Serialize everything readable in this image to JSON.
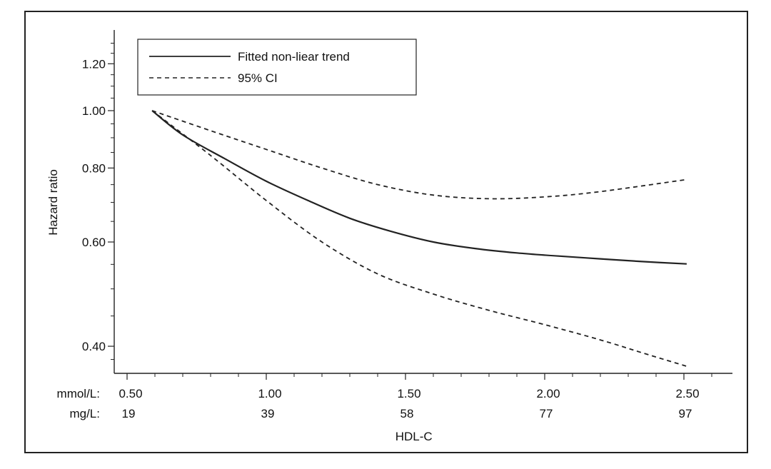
{
  "chart_data": {
    "type": "line",
    "xlabel": "HDL-C",
    "ylabel": "Hazard ratio",
    "y_scale": "log",
    "ylim": [
      0.37,
      1.35
    ],
    "xlim": [
      0.45,
      2.7
    ],
    "y_ticks": [
      {
        "value": 1.2,
        "label": "1.20"
      },
      {
        "value": 1.0,
        "label": "1.00"
      },
      {
        "value": 0.8,
        "label": "0.80"
      },
      {
        "value": 0.6,
        "label": "0.60"
      },
      {
        "value": 0.4,
        "label": "0.40"
      }
    ],
    "y_minor_ticks": [
      1.3,
      1.25,
      1.15,
      1.1,
      1.05,
      0.95,
      0.9,
      0.85,
      0.75,
      0.7,
      0.65,
      0.55,
      0.5,
      0.45,
      0.38
    ],
    "x_ticks": [
      {
        "value": 0.5,
        "mmol": "0.50",
        "mg": "19"
      },
      {
        "value": 1.0,
        "mmol": "1.00",
        "mg": "39"
      },
      {
        "value": 1.5,
        "mmol": "1.50",
        "mg": "58"
      },
      {
        "value": 2.0,
        "mmol": "2.00",
        "mg": "77"
      },
      {
        "value": 2.5,
        "mmol": "2.50",
        "mg": "97"
      }
    ],
    "x_minor_ticks": [
      0.6,
      0.7,
      0.8,
      0.9,
      1.1,
      1.2,
      1.3,
      1.4,
      1.6,
      1.7,
      1.8,
      1.9,
      2.1,
      2.2,
      2.3,
      2.4,
      2.6
    ],
    "x_row_labels": {
      "mmol": "mmol/L:",
      "mg": "mg/L:"
    },
    "series": [
      {
        "name": "Fitted non-liear trend",
        "style": "solid",
        "color": "#222222",
        "points": [
          [
            0.59,
            1.0
          ],
          [
            0.7,
            0.91
          ],
          [
            0.85,
            0.83
          ],
          [
            1.0,
            0.76
          ],
          [
            1.15,
            0.705
          ],
          [
            1.3,
            0.658
          ],
          [
            1.45,
            0.625
          ],
          [
            1.6,
            0.6
          ],
          [
            1.75,
            0.585
          ],
          [
            1.9,
            0.575
          ],
          [
            2.05,
            0.568
          ],
          [
            2.2,
            0.562
          ],
          [
            2.35,
            0.556
          ],
          [
            2.51,
            0.551
          ]
        ]
      },
      {
        "name": "95% CI",
        "style": "dashed",
        "color": "#222222",
        "points": [
          [
            0.59,
            1.0
          ],
          [
            0.8,
            0.925
          ],
          [
            1.0,
            0.86
          ],
          [
            1.2,
            0.8
          ],
          [
            1.4,
            0.75
          ],
          [
            1.6,
            0.72
          ],
          [
            1.8,
            0.71
          ],
          [
            2.0,
            0.715
          ],
          [
            2.2,
            0.73
          ],
          [
            2.51,
            0.765
          ]
        ]
      },
      {
        "name": "95% CI",
        "style": "dashed",
        "color": "#222222",
        "show_in_legend": false,
        "points": [
          [
            0.59,
            1.0
          ],
          [
            0.8,
            0.84
          ],
          [
            1.0,
            0.705
          ],
          [
            1.2,
            0.6
          ],
          [
            1.4,
            0.53
          ],
          [
            1.6,
            0.49
          ],
          [
            1.8,
            0.46
          ],
          [
            2.0,
            0.435
          ],
          [
            2.2,
            0.41
          ],
          [
            2.35,
            0.39
          ],
          [
            2.51,
            0.37
          ]
        ]
      }
    ],
    "legend": {
      "position": "top-left",
      "entries": [
        {
          "label": "Fitted non-liear trend",
          "style": "solid"
        },
        {
          "label": "95% CI",
          "style": "dashed"
        }
      ]
    },
    "grid": false
  }
}
